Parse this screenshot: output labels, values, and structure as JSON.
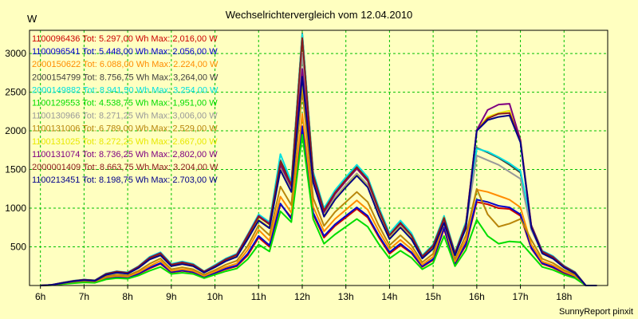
{
  "chart_data": {
    "type": "line",
    "title": "Wechselrichtervergleich vom 12.04.2010",
    "ylabel": "W",
    "footer": "SunnyReport pinxit",
    "ylim": [
      0,
      3300
    ],
    "yticks": [
      500,
      1000,
      1500,
      2000,
      2500,
      3000
    ],
    "xticks": [
      "6h",
      "7h",
      "8h",
      "9h",
      "10h",
      "11h",
      "12h",
      "13h",
      "14h",
      "15h",
      "16h",
      "17h",
      "18h"
    ],
    "xlim": [
      5.75,
      19.0
    ],
    "grid": true,
    "x": [
      6.0,
      6.25,
      6.5,
      6.75,
      7.0,
      7.25,
      7.5,
      7.75,
      8.0,
      8.25,
      8.5,
      8.75,
      9.0,
      9.25,
      9.5,
      9.75,
      10.0,
      10.25,
      10.5,
      10.75,
      11.0,
      11.25,
      11.5,
      11.75,
      12.0,
      12.25,
      12.5,
      12.75,
      13.0,
      13.25,
      13.5,
      13.75,
      14.0,
      14.25,
      14.5,
      14.75,
      15.0,
      15.25,
      15.5,
      15.75,
      16.0,
      16.25,
      16.5,
      16.75,
      17.0,
      17.25,
      17.5,
      17.75,
      18.0,
      18.25,
      18.5,
      18.75
    ],
    "series": [
      {
        "id": "1100096436",
        "label": "1100096436 Tot: 5.297,00 Wh Max: 2,016,00 W",
        "color": "#cc0000",
        "values": [
          0,
          5,
          20,
          35,
          45,
          40,
          90,
          110,
          100,
          150,
          220,
          280,
          170,
          190,
          170,
          110,
          160,
          210,
          250,
          390,
          620,
          500,
          1050,
          880,
          2020,
          920,
          620,
          770,
          880,
          990,
          880,
          630,
          410,
          520,
          420,
          240,
          330,
          730,
          280,
          520,
          1080,
          1050,
          1000,
          990,
          900,
          480,
          280,
          230,
          160,
          110,
          0,
          0
        ]
      },
      {
        "id": "1100096541",
        "label": "1100096541 Tot: 5.448,00 Wh Max: 2.056,00 W",
        "color": "#0000cc",
        "values": [
          0,
          5,
          22,
          38,
          48,
          42,
          95,
          115,
          105,
          155,
          230,
          290,
          175,
          195,
          175,
          115,
          165,
          220,
          260,
          410,
          640,
          520,
          1060,
          860,
          2060,
          940,
          640,
          790,
          900,
          1010,
          900,
          650,
          430,
          540,
          430,
          250,
          340,
          750,
          290,
          540,
          1110,
          1080,
          1030,
          1010,
          920,
          490,
          290,
          240,
          170,
          115,
          0,
          0
        ]
      },
      {
        "id": "2000150622",
        "label": "2000150622 Tot: 6.088,00 Wh Max: 2.224,00 W",
        "color": "#ff8c00",
        "values": [
          0,
          6,
          25,
          42,
          52,
          46,
          105,
          125,
          115,
          170,
          250,
          320,
          190,
          210,
          190,
          125,
          180,
          240,
          285,
          460,
          720,
          580,
          1150,
          940,
          2220,
          1020,
          700,
          860,
          980,
          1100,
          980,
          710,
          470,
          590,
          470,
          270,
          370,
          810,
          310,
          590,
          1240,
          1210,
          1160,
          1110,
          1010,
          530,
          310,
          260,
          180,
          125,
          0,
          0
        ]
      },
      {
        "id": "2000154799",
        "label": "2000154799 Tot: 8.756,75 Wh Max: 3,264,00 W",
        "color": "#404040",
        "values": [
          0,
          8,
          35,
          60,
          75,
          66,
          150,
          180,
          165,
          245,
          360,
          420,
          270,
          300,
          270,
          180,
          255,
          340,
          400,
          650,
          900,
          800,
          1620,
          1320,
          3260,
          1450,
          980,
          1210,
          1380,
          1540,
          1380,
          1000,
          660,
          820,
          660,
          380,
          520,
          880,
          420,
          800,
          1780,
          1720,
          1650,
          1560,
          1460,
          760,
          440,
          370,
          250,
          170,
          0,
          0
        ]
      },
      {
        "id": "2000149882",
        "label": "2000149882 Tot: 8.941,50 Wh Max: 3.254,00 W",
        "color": "#00e0e0",
        "values": [
          0,
          8,
          36,
          62,
          77,
          68,
          155,
          185,
          170,
          250,
          370,
          430,
          280,
          310,
          280,
          185,
          265,
          350,
          410,
          660,
          920,
          820,
          1700,
          1340,
          3250,
          1470,
          1000,
          1230,
          1400,
          1560,
          1400,
          1020,
          680,
          840,
          680,
          390,
          530,
          900,
          430,
          820,
          1770,
          1730,
          1660,
          1580,
          1480,
          780,
          450,
          380,
          255,
          175,
          0,
          0
        ]
      },
      {
        "id": "1100129553",
        "label": "1100129553 Tot: 4.538,75 Wh Max: 1,951,00 W",
        "color": "#00dd00",
        "values": [
          0,
          4,
          18,
          30,
          40,
          35,
          78,
          95,
          88,
          130,
          190,
          240,
          150,
          165,
          150,
          95,
          140,
          185,
          220,
          340,
          530,
          440,
          960,
          820,
          1950,
          860,
          540,
          660,
          760,
          860,
          760,
          540,
          350,
          450,
          360,
          210,
          290,
          640,
          250,
          460,
          850,
          640,
          540,
          570,
          560,
          400,
          240,
          200,
          140,
          95,
          0,
          0
        ]
      },
      {
        "id": "1100130966",
        "label": "1100130966 Tot: 8.271,25 Wh Max: 3,006,00 W",
        "color": "#999999",
        "values": [
          0,
          7,
          32,
          55,
          70,
          62,
          140,
          168,
          155,
          230,
          340,
          395,
          255,
          280,
          255,
          170,
          240,
          320,
          375,
          610,
          850,
          750,
          1520,
          1240,
          3000,
          1360,
          920,
          1140,
          1300,
          1450,
          1300,
          940,
          620,
          770,
          620,
          360,
          490,
          830,
          400,
          760,
          1680,
          1620,
          1560,
          1470,
          1380,
          720,
          420,
          350,
          235,
          160,
          0,
          0
        ]
      },
      {
        "id": "1100131006",
        "label": "1100131006 Tot: 6.789,00 Wh Max: 2.529,00 W",
        "color": "#b8860b",
        "values": [
          0,
          6,
          27,
          46,
          58,
          52,
          118,
          140,
          130,
          190,
          280,
          350,
          210,
          235,
          210,
          140,
          200,
          270,
          320,
          510,
          780,
          650,
          1280,
          1040,
          2530,
          1130,
          770,
          950,
          1080,
          1210,
          1080,
          780,
          520,
          650,
          520,
          300,
          410,
          880,
          340,
          650,
          1250,
          920,
          760,
          800,
          860,
          590,
          345,
          290,
          200,
          140,
          0,
          0
        ]
      },
      {
        "id": "1100131025",
        "label": "1100131025 Tot: 8.272,25 Wh Max: 2.667,00 W",
        "color": "#e8e800",
        "values": [
          0,
          7,
          32,
          55,
          70,
          62,
          140,
          168,
          155,
          230,
          340,
          395,
          255,
          280,
          255,
          170,
          240,
          320,
          375,
          610,
          850,
          750,
          1500,
          1220,
          2660,
          1340,
          900,
          1120,
          1280,
          1430,
          1280,
          920,
          610,
          760,
          610,
          355,
          480,
          820,
          395,
          750,
          2010,
          2180,
          2230,
          2260,
          1880,
          760,
          420,
          350,
          235,
          160,
          0,
          0
        ]
      },
      {
        "id": "1100131074",
        "label": "1100131074 Tot: 8.736,25 Wh Max: 2,802,00 W",
        "color": "#800080",
        "values": [
          0,
          8,
          35,
          60,
          75,
          66,
          150,
          180,
          165,
          245,
          360,
          420,
          270,
          300,
          270,
          180,
          255,
          340,
          400,
          650,
          900,
          800,
          1560,
          1280,
          2800,
          1400,
          950,
          1180,
          1350,
          1510,
          1350,
          980,
          650,
          800,
          650,
          375,
          510,
          860,
          415,
          790,
          2010,
          2270,
          2340,
          2350,
          1880,
          780,
          440,
          370,
          250,
          170,
          0,
          0
        ]
      },
      {
        "id": "2000001409",
        "label": "2000001409 Tot: 8.663,75 Wh Max: 3.204,00 W",
        "color": "#8b1a1a",
        "values": [
          0,
          8,
          34,
          58,
          74,
          65,
          148,
          178,
          163,
          242,
          355,
          415,
          268,
          296,
          268,
          178,
          252,
          336,
          396,
          640,
          890,
          790,
          1600,
          1300,
          3200,
          1430,
          970,
          1200,
          1370,
          1530,
          1370,
          990,
          650,
          810,
          650,
          375,
          515,
          870,
          415,
          790,
          2000,
          2160,
          2220,
          2230,
          1860,
          770,
          435,
          365,
          245,
          168,
          0,
          0
        ]
      },
      {
        "id": "1100213451",
        "label": "1100213451 Tot: 8.198,75 Wh Max: 2.703,00 W",
        "color": "#00008b",
        "values": [
          0,
          7,
          31,
          54,
          69,
          61,
          138,
          166,
          153,
          227,
          335,
          390,
          250,
          276,
          250,
          166,
          236,
          315,
          370,
          600,
          840,
          740,
          1490,
          1210,
          2700,
          1330,
          890,
          1110,
          1270,
          1420,
          1270,
          910,
          600,
          750,
          600,
          350,
          475,
          810,
          390,
          740,
          2000,
          2140,
          2180,
          2200,
          1850,
          750,
          415,
          345,
          232,
          158,
          0,
          0
        ]
      }
    ]
  }
}
